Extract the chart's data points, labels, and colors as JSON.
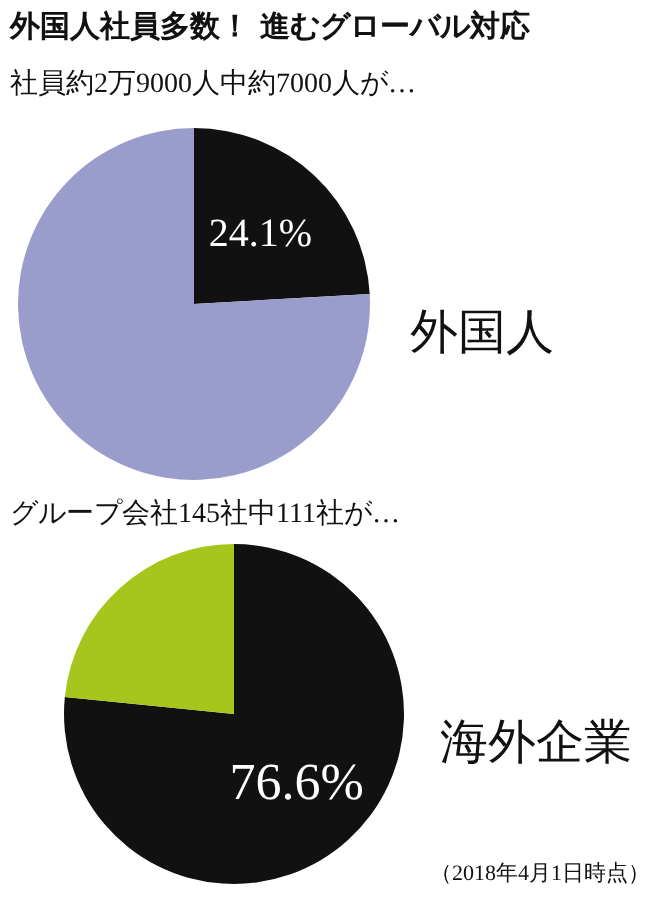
{
  "chart_data": [
    {
      "type": "pie",
      "title": "外国人社員多数！ 進むグローバル対応",
      "subtitle": "社員約2万9000人中約7000人が…",
      "categories": [
        "外国人",
        null
      ],
      "values": [
        24.1,
        75.9
      ],
      "colors": [
        "#111111",
        "#9a9dcc"
      ],
      "value_labels": [
        "24.1%",
        null
      ]
    },
    {
      "type": "pie",
      "subtitle": "グループ会社145社中111社が…",
      "categories": [
        "海外企業",
        null
      ],
      "values": [
        76.6,
        23.4
      ],
      "colors": [
        "#111111",
        "#a6c61e"
      ],
      "value_labels": [
        "76.6%",
        null
      ],
      "annotations": [
        "（2018年4月1日時点）"
      ]
    }
  ]
}
